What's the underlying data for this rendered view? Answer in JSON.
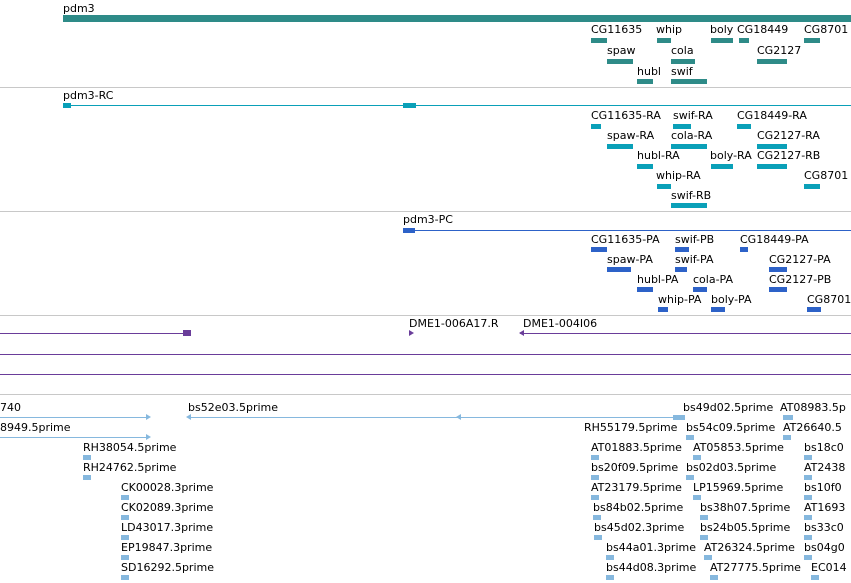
{
  "colors": {
    "gene": "#2e8b88",
    "rna": "#0aa0b8",
    "protein": "#2d62c8",
    "probe": "#6a3d9a",
    "est": "#86b8de",
    "separator": "#c8c8c8"
  },
  "gene_track": {
    "labels": [
      "pdm3",
      "CG11635",
      "whip",
      "boly",
      "CG18449",
      "CG8701",
      "spaw",
      "cola",
      "CG2127",
      "hubl",
      "swif"
    ]
  },
  "rna_track": {
    "labels": [
      "pdm3-RC",
      "CG11635-RA",
      "swif-RA",
      "CG18449-RA",
      "spaw-RA",
      "cola-RA",
      "CG2127-RA",
      "hubl-RA",
      "boly-RA",
      "CG2127-RB",
      "whip-RA",
      "CG8701",
      "swif-RB"
    ]
  },
  "protein_track": {
    "labels": [
      "pdm3-PC",
      "CG11635-PA",
      "swif-PB",
      "CG18449-PA",
      "spaw-PA",
      "swif-PA",
      "CG2127-PA",
      "hubl-PA",
      "cola-PA",
      "CG2127-PB",
      "whip-PA",
      "boly-PA",
      "CG8701"
    ]
  },
  "probe_track": {
    "labels": [
      "DME1-006A17.R",
      "DME1-004I06"
    ]
  },
  "est_track": {
    "labels": [
      "740",
      "bs52e03.5prime",
      "bs49d02.5prime",
      "AT08983.5p",
      "8949.5prime",
      "RH55179.5prime",
      "bs54c09.5prime",
      "AT26640.5",
      "RH38054.5prime",
      "AT01883.5prime",
      "AT05853.5prime",
      "bs18c0",
      "RH24762.5prime",
      "bs20f09.5prime",
      "bs02d03.5prime",
      "AT2438",
      "CK00028.3prime",
      "AT23179.5prime",
      "LP15969.5prime",
      "bs10f0",
      "CK02089.3prime",
      "bs84b02.5prime",
      "bs38h07.5prime",
      "AT1693",
      "LD43017.3prime",
      "bs45d02.3prime",
      "bs24b05.5prime",
      "bs33c0",
      "EP19847.3prime",
      "bs44a01.3prime",
      "AT26324.5prime",
      "bs04g0",
      "SD16292.5prime",
      "bs44d08.3prime",
      "AT27775.5prime",
      "EC014"
    ]
  }
}
